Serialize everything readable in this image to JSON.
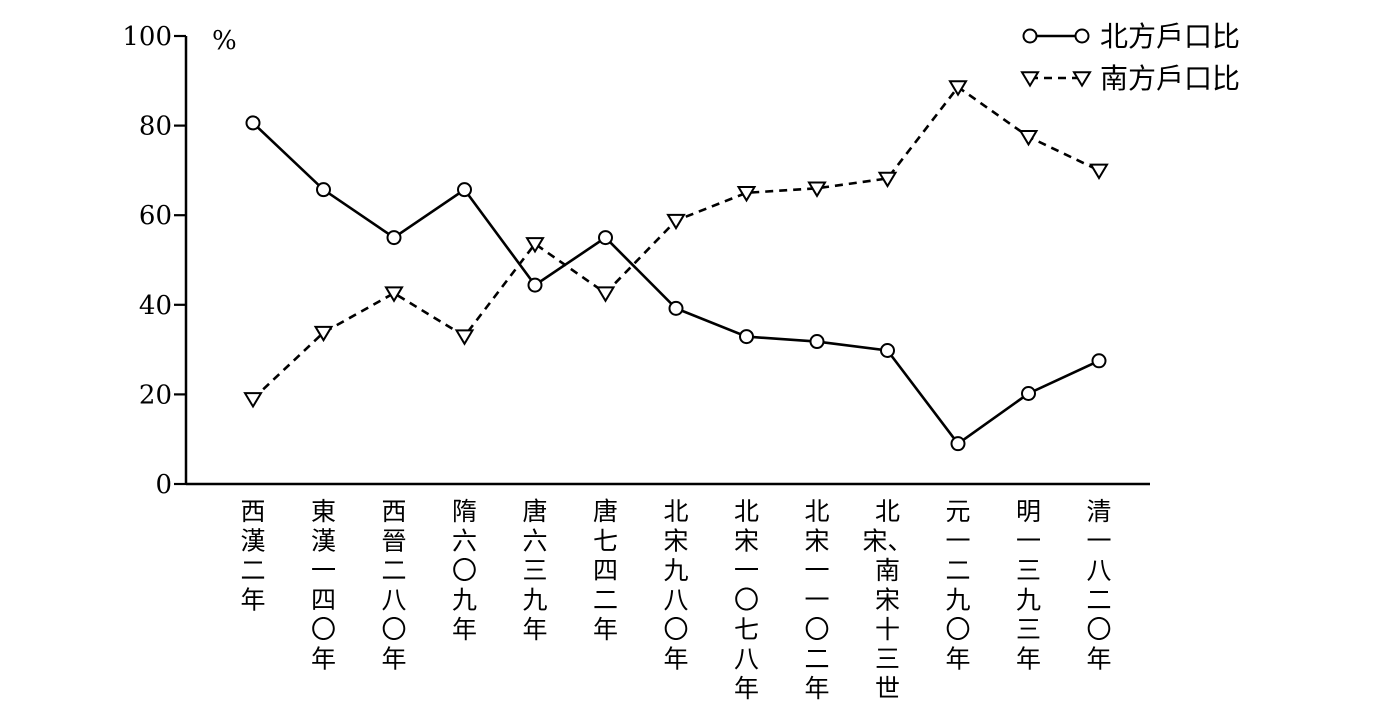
{
  "chart_data": {
    "type": "line",
    "ylabel_unit": "%",
    "ylim": [
      0,
      100
    ],
    "yticks": [
      "0",
      "20",
      "40",
      "60",
      "80",
      "100"
    ],
    "grid": false,
    "legend_position": "top-right",
    "categories": [
      "西漢二年",
      "東漢一四〇年",
      "西晉二八〇年",
      "隋六〇九年",
      "唐六三九年",
      "唐七四二年",
      "北宋九八〇年",
      "北宋一〇七八年",
      "北宋一一〇二年",
      "北宋、南宋十三世紀",
      "元一二九〇年",
      "明一三九三年",
      "清一八二〇年"
    ],
    "series": [
      {
        "name": "北方戶口比",
        "line_style": "solid",
        "marker": "circle",
        "values": [
          80.6,
          65.7,
          55.0,
          65.7,
          44.4,
          55.0,
          39.2,
          32.9,
          31.8,
          29.8,
          9.0,
          20.2,
          27.5
        ]
      },
      {
        "name": "南方戶口比",
        "line_style": "dashed",
        "marker": "triangle-down",
        "values": [
          19.0,
          33.8,
          42.6,
          33.0,
          53.6,
          42.6,
          58.8,
          65.0,
          66.0,
          68.2,
          88.6,
          77.5,
          70.0
        ]
      }
    ]
  }
}
